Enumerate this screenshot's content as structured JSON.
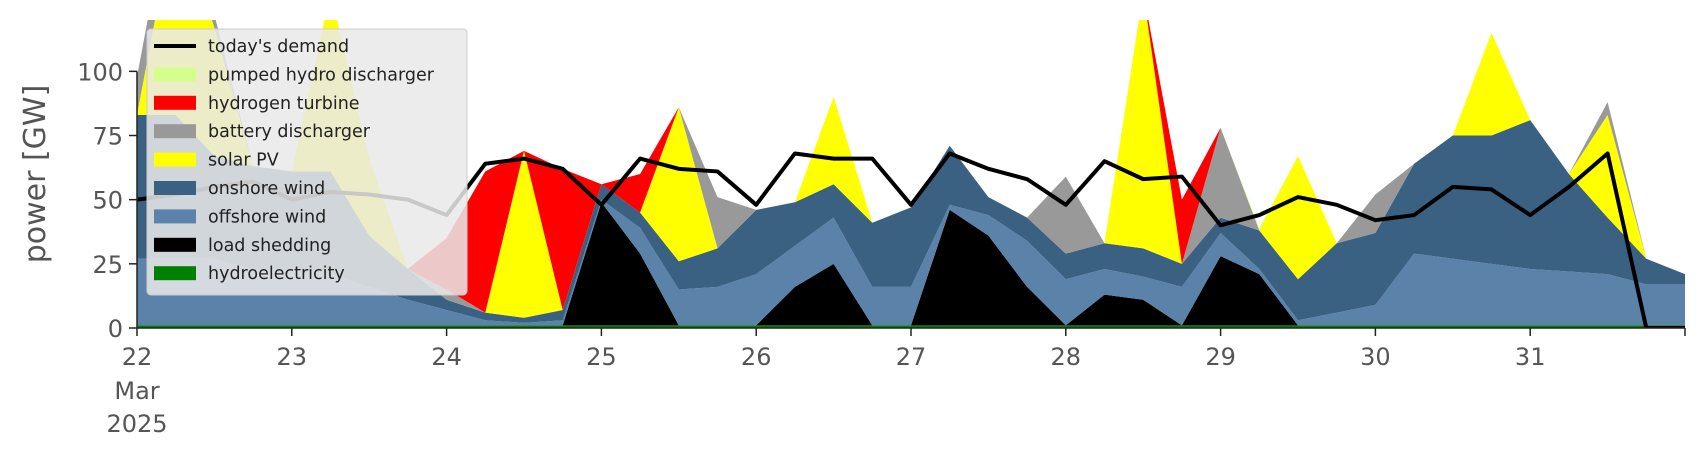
{
  "chart_data": {
    "type": "area",
    "ylabel": "power [GW]",
    "ylim": [
      0,
      120
    ],
    "xlim": [
      "2025-03-22T00:00",
      "2025-04-01T00:00"
    ],
    "yticks": [
      0,
      25,
      50,
      75,
      100
    ],
    "xticks": [
      {
        "x": "2025-03-22T00:00",
        "label": "22",
        "sub": [
          "Mar",
          "2025"
        ]
      },
      {
        "x": "2025-03-23T00:00",
        "label": "23"
      },
      {
        "x": "2025-03-24T00:00",
        "label": "24"
      },
      {
        "x": "2025-03-25T00:00",
        "label": "25"
      },
      {
        "x": "2025-03-26T00:00",
        "label": "26"
      },
      {
        "x": "2025-03-27T00:00",
        "label": "27"
      },
      {
        "x": "2025-03-28T00:00",
        "label": "28"
      },
      {
        "x": "2025-03-29T00:00",
        "label": "29"
      },
      {
        "x": "2025-03-30T00:00",
        "label": "30"
      },
      {
        "x": "2025-03-31T00:00",
        "label": "31"
      },
      {
        "x": "2025-04-01T00:00",
        "label": ""
      }
    ],
    "legend_position": "upper-left",
    "grid": false,
    "x": [
      "2025-03-22T00:00",
      "2025-03-22T06:00",
      "2025-03-22T12:00",
      "2025-03-22T18:00",
      "2025-03-23T00:00",
      "2025-03-23T06:00",
      "2025-03-23T12:00",
      "2025-03-23T18:00",
      "2025-03-24T00:00",
      "2025-03-24T06:00",
      "2025-03-24T12:00",
      "2025-03-24T18:00",
      "2025-03-25T00:00",
      "2025-03-25T06:00",
      "2025-03-25T12:00",
      "2025-03-25T18:00",
      "2025-03-26T00:00",
      "2025-03-26T06:00",
      "2025-03-26T12:00",
      "2025-03-26T18:00",
      "2025-03-27T00:00",
      "2025-03-27T06:00",
      "2025-03-27T12:00",
      "2025-03-27T18:00",
      "2025-03-28T00:00",
      "2025-03-28T06:00",
      "2025-03-28T12:00",
      "2025-03-28T18:00",
      "2025-03-29T00:00",
      "2025-03-29T06:00",
      "2025-03-29T12:00",
      "2025-03-29T18:00",
      "2025-03-30T00:00",
      "2025-03-30T06:00",
      "2025-03-30T12:00",
      "2025-03-30T18:00",
      "2025-03-31T00:00",
      "2025-03-31T06:00",
      "2025-03-31T12:00",
      "2025-03-31T18:00",
      "2025-04-01T00:00"
    ],
    "series": [
      {
        "name": "hydroelectricity",
        "color": "#008000",
        "values": [
          1,
          1,
          1,
          1,
          1,
          1,
          1,
          1,
          1,
          1,
          1,
          1,
          1,
          1,
          1,
          1,
          1,
          1,
          1,
          1,
          1,
          1,
          1,
          1,
          1,
          1,
          1,
          1,
          1,
          1,
          1,
          1,
          1,
          1,
          1,
          1,
          1,
          1,
          1,
          1,
          1
        ]
      },
      {
        "name": "load shedding",
        "color": "#000000",
        "values": [
          0,
          0,
          0,
          0,
          0,
          0,
          0,
          0,
          0,
          0,
          0,
          0,
          48,
          28,
          0,
          0,
          0,
          15,
          24,
          0,
          0,
          45,
          35,
          15,
          0,
          12,
          10,
          0,
          27,
          20,
          0,
          0,
          0,
          0,
          0,
          0,
          0,
          0,
          0,
          0,
          0
        ]
      },
      {
        "name": "offshore wind",
        "color": "#5b82a8",
        "values": [
          26,
          26,
          26,
          22,
          22,
          20,
          15,
          10,
          6,
          2,
          1,
          2,
          1,
          10,
          14,
          15,
          20,
          16,
          18,
          15,
          15,
          2,
          8,
          18,
          18,
          10,
          9,
          15,
          9,
          2,
          2,
          5,
          8,
          28,
          26,
          24,
          22,
          21,
          20,
          16,
          16
        ]
      },
      {
        "name": "onshore wind",
        "color": "#3b6182",
        "values": [
          56,
          56,
          40,
          40,
          38,
          40,
          20,
          12,
          4,
          3,
          2,
          4,
          6,
          6,
          11,
          15,
          25,
          17,
          13,
          25,
          31,
          23,
          7,
          9,
          10,
          10,
          11,
          9,
          6,
          15,
          16,
          27,
          28,
          35,
          48,
          50,
          58,
          38,
          22,
          10,
          4
        ]
      },
      {
        "name": "solar PV",
        "color": "#ffff00",
        "values": [
          0,
          80,
          50,
          0,
          0,
          70,
          30,
          0,
          0,
          0,
          65,
          0,
          0,
          0,
          60,
          0,
          0,
          0,
          34,
          0,
          0,
          0,
          0,
          0,
          0,
          0,
          100,
          0,
          0,
          0,
          48,
          0,
          0,
          0,
          0,
          40,
          0,
          0,
          40,
          0,
          0
        ]
      },
      {
        "name": "battery discharger",
        "color": "#999999",
        "values": [
          15,
          15,
          5,
          0,
          0,
          0,
          0,
          0,
          4,
          0,
          0,
          0,
          0,
          0,
          0,
          20,
          0,
          0,
          0,
          0,
          0,
          0,
          0,
          0,
          30,
          0,
          0,
          0,
          35,
          0,
          0,
          0,
          15,
          0,
          0,
          0,
          0,
          0,
          5,
          0,
          0
        ]
      },
      {
        "name": "hydrogen turbine",
        "color": "#ff0000",
        "values": [
          0,
          0,
          0,
          0,
          0,
          0,
          0,
          0,
          20,
          55,
          0,
          55,
          0,
          15,
          0,
          0,
          0,
          0,
          0,
          0,
          0,
          0,
          0,
          0,
          0,
          0,
          0,
          25,
          0,
          0,
          0,
          0,
          0,
          0,
          0,
          0,
          0,
          0,
          0,
          0,
          0
        ]
      },
      {
        "name": "pumped hydro discharger",
        "color": "#d4ff8c",
        "values": [
          0,
          0,
          0,
          0,
          0,
          0,
          0,
          0,
          0,
          0,
          0,
          0,
          0,
          0,
          0,
          0,
          0,
          0,
          0,
          0,
          0,
          0,
          0,
          0,
          0,
          0,
          0,
          0,
          0,
          1,
          0,
          0,
          0,
          0,
          0,
          0,
          0,
          0,
          0,
          0,
          0
        ]
      }
    ],
    "demand": {
      "name": "today's demand",
      "color": "#000000",
      "values": [
        50,
        52,
        55,
        57,
        50,
        53,
        52,
        50,
        44,
        64,
        66,
        62,
        48,
        66,
        62,
        61,
        48,
        68,
        66,
        66,
        48,
        68,
        62,
        58,
        48,
        65,
        58,
        59,
        40,
        44,
        51,
        48,
        42,
        44,
        55,
        54,
        44,
        55,
        68,
        0,
        0
      ]
    },
    "legend_order": [
      "today's demand",
      "pumped hydro discharger",
      "hydrogen turbine",
      "battery discharger",
      "solar PV",
      "onshore wind",
      "offshore wind",
      "load shedding",
      "hydroelectricity"
    ]
  }
}
